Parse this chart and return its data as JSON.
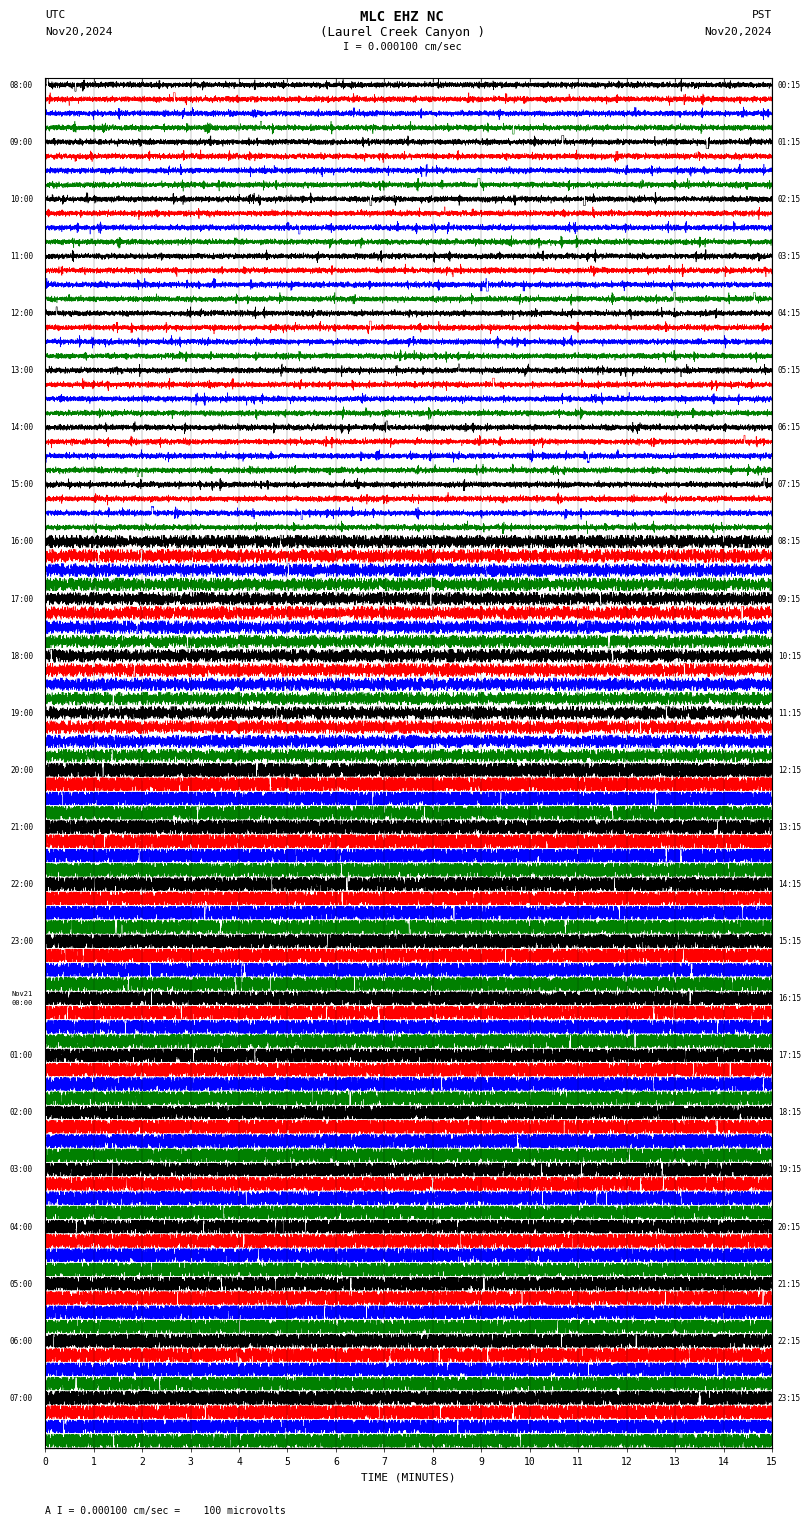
{
  "title_line1": "MLC EHZ NC",
  "title_line2": "(Laurel Creek Canyon )",
  "title_line3": "I = 0.000100 cm/sec",
  "top_left_label1": "UTC",
  "top_left_label2": "Nov20,2024",
  "top_right_label1": "PST",
  "top_right_label2": "Nov20,2024",
  "xlabel": "TIME (MINUTES)",
  "footer": "A I = 0.000100 cm/sec =    100 microvolts",
  "utc_labels": [
    "08:00",
    "09:00",
    "10:00",
    "11:00",
    "12:00",
    "13:00",
    "14:00",
    "15:00",
    "16:00",
    "17:00",
    "18:00",
    "19:00",
    "20:00",
    "21:00",
    "22:00",
    "23:00",
    "Nov21\n00:00",
    "01:00",
    "02:00",
    "03:00",
    "04:00",
    "05:00",
    "06:00",
    "07:00"
  ],
  "pst_labels": [
    "00:15",
    "01:15",
    "02:15",
    "03:15",
    "04:15",
    "05:15",
    "06:15",
    "07:15",
    "08:15",
    "09:15",
    "10:15",
    "11:15",
    "12:15",
    "13:15",
    "14:15",
    "15:15",
    "16:15",
    "17:15",
    "18:15",
    "19:15",
    "20:15",
    "21:15",
    "22:15",
    "23:15"
  ],
  "num_rows": 24,
  "traces_per_row": 4,
  "colors": [
    "black",
    "red",
    "blue",
    "green"
  ],
  "bg_color": "white",
  "line_width": 0.4,
  "time_minutes": 15,
  "xticks": [
    0,
    1,
    2,
    3,
    4,
    5,
    6,
    7,
    8,
    9,
    10,
    11,
    12,
    13,
    14,
    15
  ]
}
